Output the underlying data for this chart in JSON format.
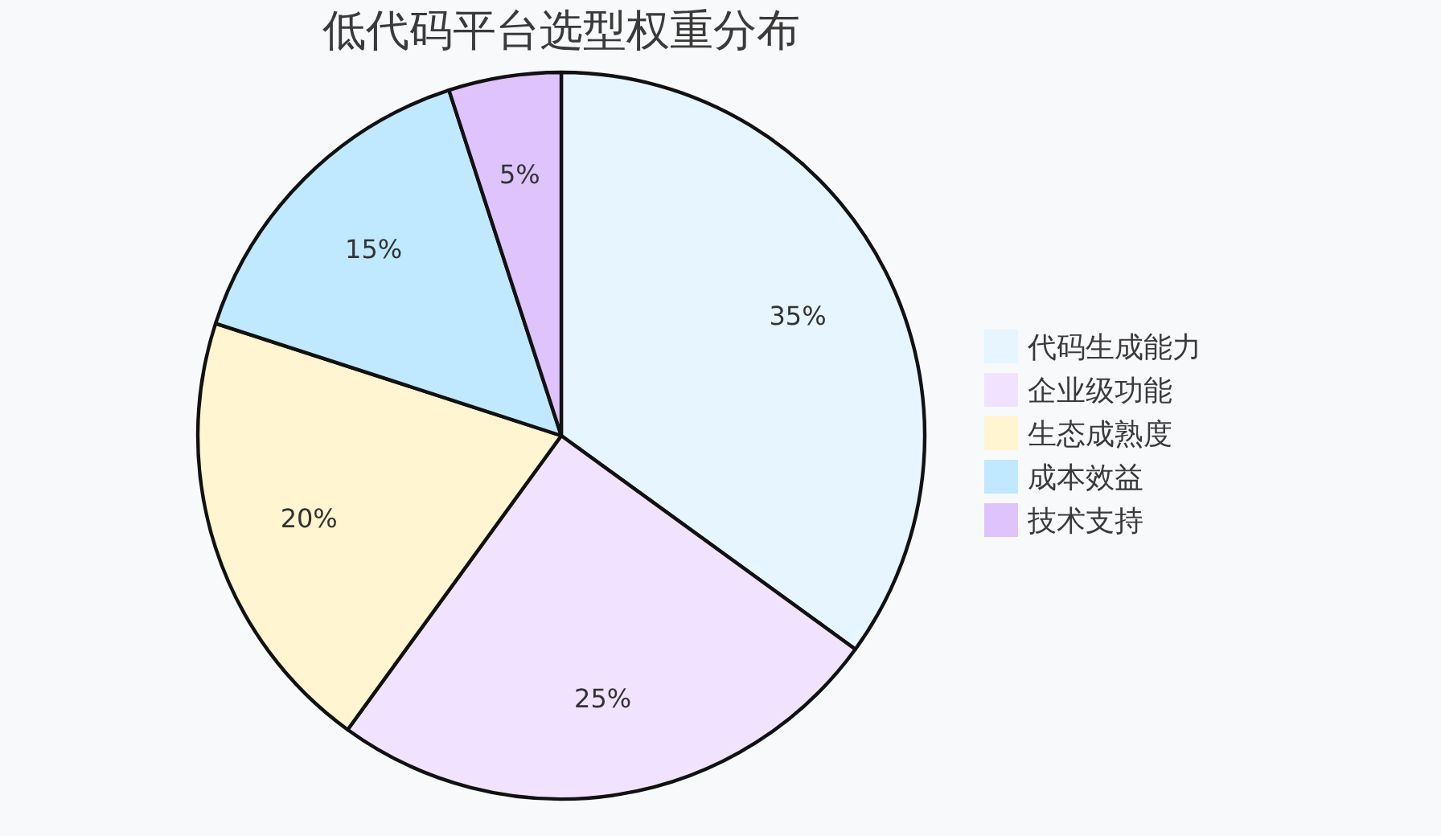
{
  "chart_data": {
    "type": "pie",
    "title": "低代码平台选型权重分布",
    "categories": [
      "代码生成能力",
      "企业级功能",
      "生态成熟度",
      "成本效益",
      "技术支持"
    ],
    "values": [
      35,
      25,
      20,
      15,
      5
    ],
    "value_labels": [
      "35%",
      "25%",
      "20%",
      "15%",
      "5%"
    ],
    "colors": [
      "#e6f5ff",
      "#f1e3ff",
      "#fff5d0",
      "#c0e8ff",
      "#dfc3fc"
    ],
    "legend": "right"
  }
}
